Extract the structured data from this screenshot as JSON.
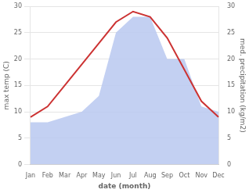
{
  "chart_data": {
    "type": "line",
    "xlabel": "date (month)",
    "ylabel": "max temp (C)",
    "y2label": "med. precipitation (kg/m2)",
    "categories": [
      "Jan",
      "Feb",
      "Mar",
      "Apr",
      "May",
      "Jun",
      "Jul",
      "Aug",
      "Sep",
      "Oct",
      "Nov",
      "Dec"
    ],
    "series": [
      {
        "type": "area",
        "color": "#b8c8f0",
        "axis": "y2",
        "values": [
          8,
          8,
          9,
          10,
          13,
          25,
          28,
          28,
          20,
          20,
          11,
          10
        ]
      },
      {
        "type": "line",
        "color": "#cc3333",
        "values": [
          9,
          11,
          15,
          19,
          23,
          27,
          29,
          28,
          24,
          18,
          12,
          9
        ]
      }
    ],
    "ylim": [
      0,
      30
    ],
    "yticks": [
      0,
      5,
      10,
      15,
      20,
      25,
      30
    ],
    "y2lim": [
      0,
      30
    ],
    "y2ticks": [
      0,
      5,
      10,
      15,
      20,
      25,
      30
    ],
    "grid": true
  }
}
